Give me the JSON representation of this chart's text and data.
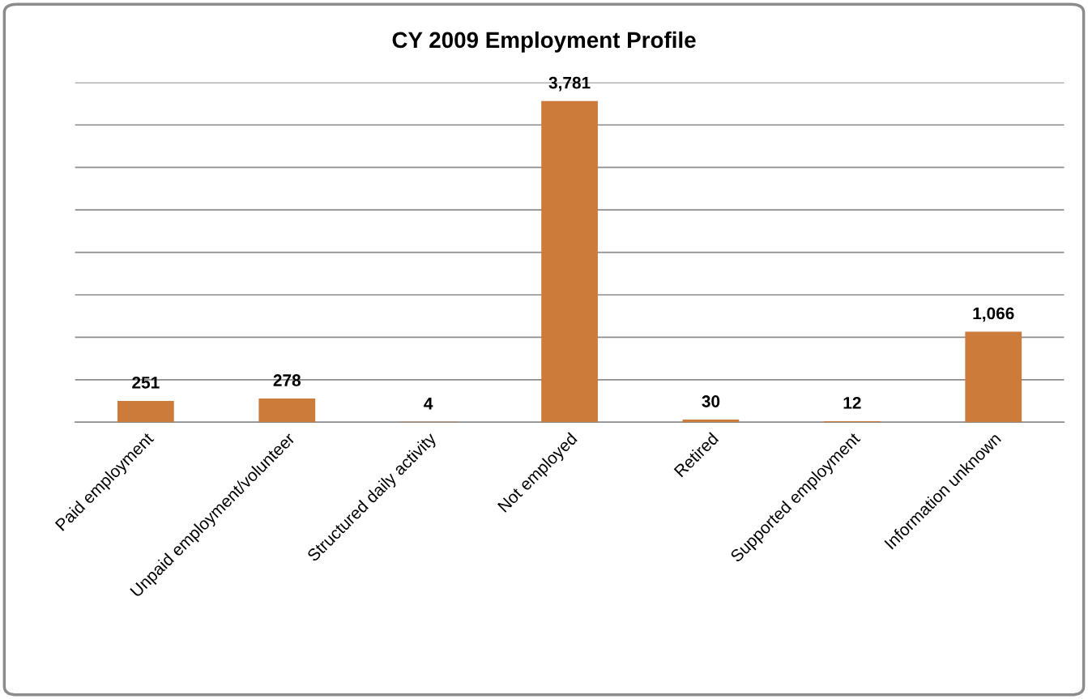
{
  "chart_data": {
    "type": "bar",
    "title": "CY 2009 Employment Profile",
    "categories": [
      "Paid employment",
      "Unpaid employment/volunteer",
      "Structured daily activity",
      "Not employed",
      "Retired",
      "Supported employment",
      "Information unknown"
    ],
    "values": [
      251,
      278,
      4,
      3781,
      30,
      12,
      1066
    ],
    "color": "#cd7b3a",
    "value_labels": [
      "251",
      "278",
      "4",
      "3,781",
      "30",
      "12",
      "1,066"
    ],
    "ylim": [
      0,
      4000
    ],
    "yticks": [
      {
        "value": 0,
        "label": null
      },
      {
        "value": 500,
        "label": null
      },
      {
        "value": 1000,
        "label": null
      },
      {
        "value": 1500,
        "label": null
      },
      {
        "value": 2000,
        "label": null
      },
      {
        "value": 2500,
        "label": null
      },
      {
        "value": 3000,
        "label": null
      },
      {
        "value": 3500,
        "label": null
      },
      {
        "value": 4000,
        "label": null
      }
    ],
    "grid": "y",
    "tick_labels": "x"
  }
}
